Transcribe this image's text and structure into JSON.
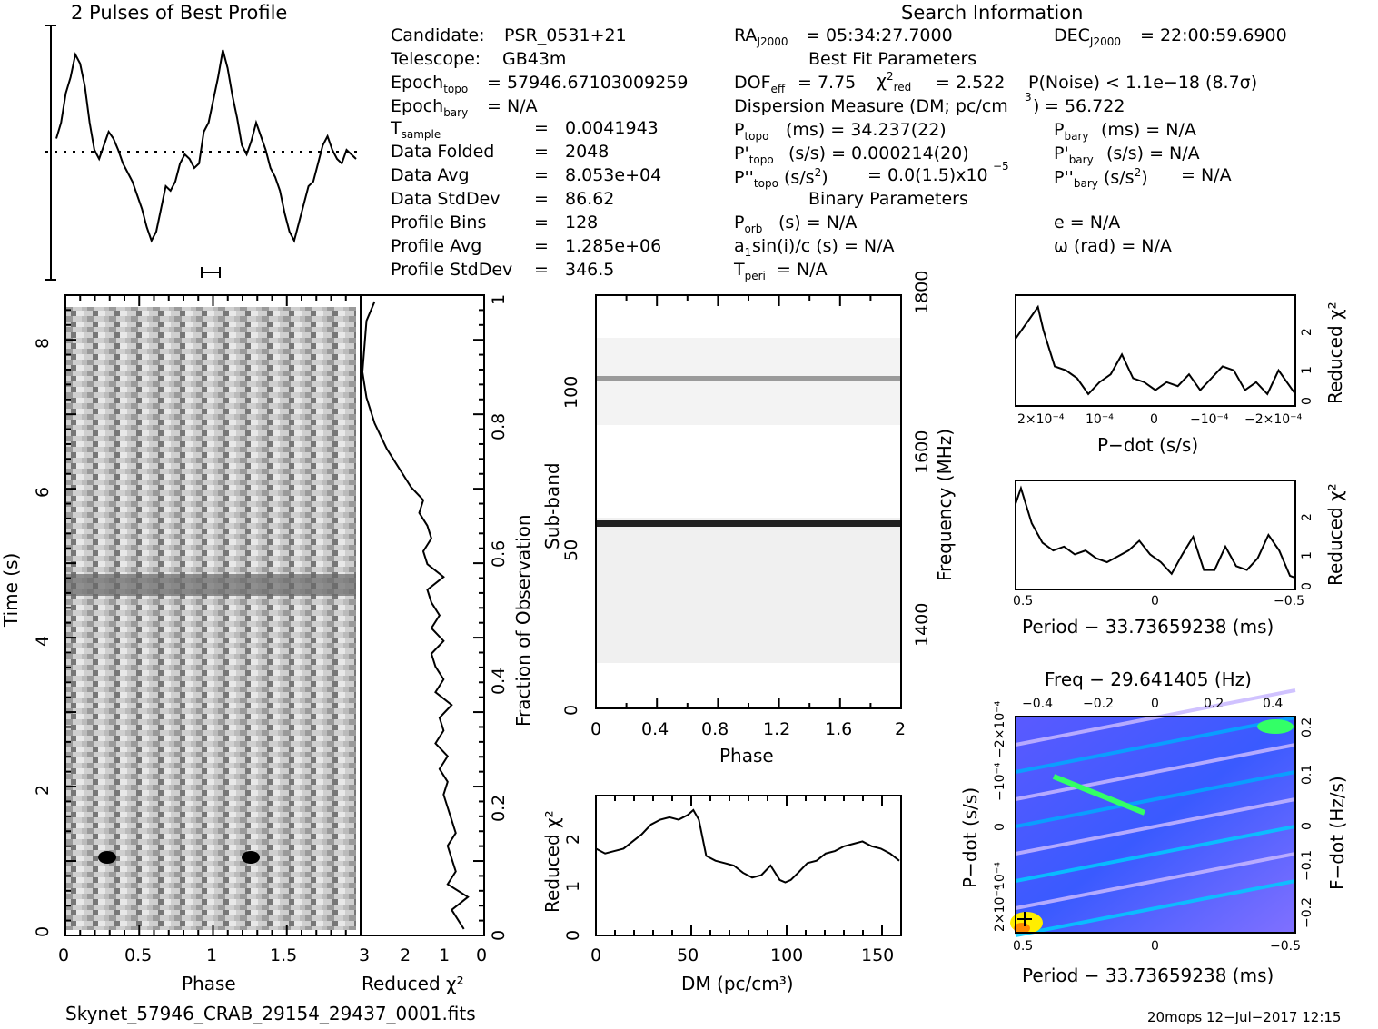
{
  "header": {
    "profile_title": "2 Pulses of Best Profile",
    "search_title": "Search Information"
  },
  "info": {
    "left": [
      {
        "key": "Candidate:",
        "value": "PSR_0531+21"
      },
      {
        "key": "Telescope:",
        "value": "GB43m"
      },
      {
        "key": "Epoch_topo",
        "value": "= 57946.67103009259"
      },
      {
        "key": "Epoch_bary",
        "value": "= N/A"
      },
      {
        "key": "T_sample",
        "value": "0.0041943"
      },
      {
        "key": "Data Folded",
        "value": "2048"
      },
      {
        "key": "Data Avg",
        "value": "8.053e+04"
      },
      {
        "key": "Data StdDev",
        "value": "86.62"
      },
      {
        "key": "Profile Bins",
        "value": "128"
      },
      {
        "key": "Profile Avg",
        "value": "1.285e+06"
      },
      {
        "key": "Profile StdDev",
        "value": "346.5"
      }
    ],
    "ra": "= 05:34:27.7000",
    "dec": "= 22:00:59.6900",
    "best_fit_title": "Best Fit Parameters",
    "dof_eff": "= 7.75",
    "chi2_red": "= 2.522",
    "p_noise": "P(Noise) < 1.1e−18   (8.7σ)",
    "dm_line": "Dispersion Measure (DM; pc/cm",
    "dm_value": "= 56.722",
    "p_topo": "(ms) =  34.237(22)",
    "pd_topo": "(s/s) =  0.000214(20)",
    "pdd_topo": "= 0.0(1.5)x10",
    "p_bary": "(ms) = N/A",
    "pd_bary": "(s/s) = N/A",
    "pdd_bary": "= N/A",
    "binary_title": "Binary Parameters",
    "p_orb": "(s) = N/A",
    "a1sini": "sin(i)/c (s) = N/A",
    "t_peri": "= N/A",
    "ecc": "e = N/A",
    "omega": "ω (rad) = N/A"
  },
  "footer": {
    "filename": "Skynet_57946_CRAB_29154_29437_0001.fits",
    "stamp": "20mops 12−Jul−2017 12:15"
  },
  "chart_data": [
    {
      "type": "line",
      "name": "profile",
      "title": "2 Pulses of Best Profile",
      "x_range": [
        0,
        2
      ],
      "values": [
        0.55,
        0.62,
        0.75,
        0.82,
        0.92,
        0.88,
        0.78,
        0.62,
        0.5,
        0.46,
        0.52,
        0.58,
        0.55,
        0.5,
        0.44,
        0.4,
        0.36,
        0.3,
        0.24,
        0.16,
        0.1,
        0.14,
        0.24,
        0.34,
        0.32,
        0.36,
        0.44,
        0.48,
        0.46,
        0.42,
        0.44,
        0.58,
        0.62,
        0.72,
        0.82,
        0.94,
        0.86,
        0.74,
        0.64,
        0.52,
        0.48,
        0.54,
        0.62,
        0.56,
        0.5,
        0.42,
        0.38,
        0.32,
        0.22,
        0.14,
        0.1,
        0.18,
        0.26,
        0.34,
        0.36,
        0.44,
        0.52,
        0.56,
        0.5,
        0.46,
        0.44,
        0.5,
        0.48,
        0.46
      ]
    },
    {
      "type": "heatmap",
      "name": "time-phase",
      "xlabel": "Phase",
      "ylabel": "Time (s)",
      "x_range": [
        0,
        2
      ],
      "y_range": [
        0,
        8.6
      ],
      "x_ticks": [
        "0",
        "0.5",
        "1",
        "1.5"
      ],
      "y_ticks": [
        "0",
        "2",
        "4",
        "6",
        "8"
      ]
    },
    {
      "type": "line",
      "name": "time-chi2",
      "xlabel": "Reduced χ²",
      "y2label": "Fraction of Observation",
      "x_range": [
        3,
        0
      ],
      "y_range": [
        0,
        1
      ],
      "x_ticks": [
        "3",
        "2",
        "1",
        "0"
      ],
      "y2_ticks": [
        "0",
        "0.2",
        "0.4",
        "0.6",
        "0.8",
        "1"
      ],
      "x": [
        0.5,
        0.8,
        0.4,
        0.9,
        0.7,
        0.8,
        0.9,
        0.7,
        0.8,
        0.9,
        1.0,
        0.9,
        1.1,
        0.9,
        1.2,
        1.0,
        1.1,
        0.8,
        1.2,
        1.0,
        1.2,
        1.3,
        1.0,
        1.3,
        1.1,
        1.3,
        1.4,
        1.0,
        1.4,
        1.5,
        1.3,
        1.4,
        1.6,
        1.5,
        1.8,
        2.0,
        2.2,
        2.4,
        2.7,
        2.9,
        3.0,
        2.95,
        2.9,
        2.7
      ],
      "y": [
        0.01,
        0.04,
        0.06,
        0.08,
        0.1,
        0.12,
        0.14,
        0.16,
        0.18,
        0.2,
        0.22,
        0.24,
        0.26,
        0.28,
        0.3,
        0.32,
        0.34,
        0.36,
        0.38,
        0.4,
        0.42,
        0.44,
        0.46,
        0.48,
        0.5,
        0.52,
        0.54,
        0.56,
        0.58,
        0.6,
        0.62,
        0.64,
        0.66,
        0.68,
        0.7,
        0.72,
        0.74,
        0.76,
        0.8,
        0.84,
        0.88,
        0.92,
        0.96,
        0.99
      ]
    },
    {
      "type": "heatmap",
      "name": "subband-phase",
      "xlabel": "Phase",
      "ylabel": "Sub-band",
      "y2label": "Frequency (MHz)",
      "x_range": [
        0,
        2
      ],
      "y_range": [
        0,
        128
      ],
      "x_ticks": [
        "0",
        "0.4",
        "0.8",
        "1.2",
        "1.6",
        "2"
      ],
      "y_ticks": [
        "0",
        "50",
        "100"
      ],
      "y2_ticks": [
        "1400",
        "1600",
        "1800"
      ]
    },
    {
      "type": "line",
      "name": "dm-chi2",
      "xlabel": "DM (pc/cm³)",
      "ylabel": "Reduced χ²",
      "x_range": [
        0,
        166
      ],
      "y_range": [
        0,
        2.9
      ],
      "x_ticks": [
        "0",
        "50",
        "100",
        "150"
      ],
      "y_ticks": [
        "0",
        "1",
        "2"
      ],
      "x": [
        0,
        5,
        10,
        15,
        20,
        25,
        30,
        35,
        40,
        45,
        50,
        53,
        56,
        60,
        65,
        70,
        75,
        80,
        85,
        90,
        95,
        100,
        103,
        106,
        110,
        115,
        120,
        125,
        130,
        135,
        140,
        145,
        150,
        155,
        160,
        165
      ],
      "y": [
        1.8,
        1.7,
        1.75,
        1.8,
        1.95,
        2.1,
        2.3,
        2.4,
        2.45,
        2.4,
        2.5,
        2.6,
        2.4,
        1.65,
        1.55,
        1.5,
        1.45,
        1.3,
        1.2,
        1.25,
        1.45,
        1.15,
        1.1,
        1.15,
        1.3,
        1.5,
        1.55,
        1.7,
        1.75,
        1.85,
        1.9,
        1.95,
        1.85,
        1.8,
        1.7,
        1.55
      ]
    },
    {
      "type": "line",
      "name": "pdot-chi2",
      "xlabel": "P−dot (s/s)",
      "ylabel": "Reduced χ²",
      "x_range": [
        0.00025,
        -0.00025
      ],
      "y_range": [
        0,
        2.8
      ],
      "x_ticks": [
        "2×10⁻⁴",
        "10⁻⁴",
        "0",
        "−10⁻⁴",
        "−2×10⁻⁴"
      ],
      "y_ticks": [
        "0",
        "1",
        "2"
      ],
      "x": [
        0.00025,
        0.00023,
        0.00021,
        0.0002,
        0.00018,
        0.00016,
        0.00014,
        0.00012,
        0.0001,
        8e-05,
        6e-05,
        4e-05,
        2e-05,
        0,
        -2e-05,
        -4e-05,
        -6e-05,
        -8e-05,
        -0.0001,
        -0.00012,
        -0.00014,
        -0.00016,
        -0.00018,
        -0.0002,
        -0.00022,
        -0.00025
      ],
      "y": [
        1.7,
        2.1,
        2.5,
        1.9,
        1.0,
        0.9,
        0.7,
        0.3,
        0.6,
        0.8,
        1.3,
        0.7,
        0.6,
        0.4,
        0.6,
        0.5,
        0.8,
        0.4,
        0.7,
        1.0,
        0.9,
        0.4,
        0.6,
        0.3,
        0.9,
        0.3
      ]
    },
    {
      "type": "line",
      "name": "period-chi2",
      "xlabel": "Period − 33.73659238 (ms)",
      "ylabel": "Reduced χ²",
      "x_range": [
        0.52,
        -0.52
      ],
      "y_range": [
        0,
        2.8
      ],
      "x_ticks": [
        "0.5",
        "0",
        "−0.5"
      ],
      "y_ticks": [
        "0",
        "1",
        "2"
      ],
      "x": [
        0.52,
        0.5,
        0.46,
        0.42,
        0.38,
        0.34,
        0.3,
        0.26,
        0.22,
        0.18,
        0.14,
        0.1,
        0.06,
        0.02,
        -0.02,
        -0.06,
        -0.1,
        -0.14,
        -0.18,
        -0.22,
        -0.26,
        -0.3,
        -0.34,
        -0.38,
        -0.42,
        -0.46,
        -0.5,
        -0.52
      ],
      "y": [
        2.2,
        2.6,
        1.7,
        1.2,
        1.0,
        1.1,
        0.9,
        1.0,
        0.8,
        0.7,
        0.85,
        1.0,
        1.25,
        0.9,
        0.7,
        0.4,
        0.9,
        1.35,
        0.5,
        0.5,
        1.1,
        0.6,
        0.5,
        0.8,
        1.4,
        1.0,
        0.35,
        0.3
      ]
    },
    {
      "type": "heatmap",
      "name": "period-pdot",
      "title": "Freq − 29.641405 (Hz)",
      "xlabel": "Period − 33.73659238 (ms)",
      "ylabel": "P−dot (s/s)",
      "y2label": "F−dot (Hz/s)",
      "x_ticks": [
        "0.5",
        "0",
        "−0.5"
      ],
      "x2_ticks": [
        "−0.4",
        "−0.2",
        "0",
        "0.2",
        "0.4"
      ],
      "y_ticks": [
        "2×10⁻⁴",
        "10⁻⁴",
        "0",
        "−10⁻⁴",
        "−2×10⁻⁴"
      ],
      "y2_ticks": [
        "−0.2",
        "−0.1",
        "0",
        "0.1",
        "0.2"
      ]
    }
  ]
}
